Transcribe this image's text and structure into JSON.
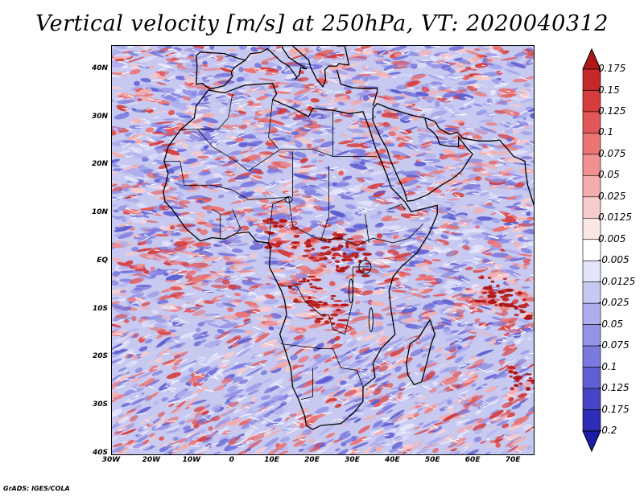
{
  "title": "Vertical velocity [m/s] at 250hPa, VT: 2020040312",
  "credit": "GrADS: IGES/COLA",
  "map": {
    "lat_min": -40,
    "lat_max": 45,
    "lon_min": -30,
    "lon_max": 75,
    "lat_ticks": [
      "40N",
      "30N",
      "20N",
      "10N",
      "EQ",
      "10S",
      "20S",
      "30S",
      "40S"
    ],
    "lon_ticks": [
      "30W",
      "20W",
      "10W",
      "0",
      "10E",
      "20E",
      "30E",
      "40E",
      "50E",
      "60E",
      "70E"
    ]
  },
  "colorbar": {
    "labels": [
      "0.175",
      "0.15",
      "0.125",
      "0.1",
      "0.075",
      "0.05",
      "0.025",
      "0.0125",
      "0.005",
      "-0.005",
      "-0.0125",
      "-0.025",
      "-0.05",
      "-0.075",
      "-0.1",
      "-0.125",
      "-0.175",
      "-0.2"
    ],
    "colors": [
      "#b01818",
      "#c42828",
      "#d63c3c",
      "#e25858",
      "#eb7474",
      "#f09090",
      "#f4adad",
      "#f8cccc",
      "#fbe6e6",
      "#ffffff",
      "#e4e4fb",
      "#c8c8f4",
      "#aeaeee",
      "#9494e6",
      "#7a7ade",
      "#5f5fd2",
      "#4646c4",
      "#2c2cb4",
      "#1c1ca6"
    ]
  },
  "chart_data": {
    "type": "heatmap",
    "title": "Vertical velocity [m/s] at 250hPa, VT: 2020040312",
    "variable": "Vertical velocity",
    "units": "m/s",
    "level": "250hPa",
    "valid_time": "2020040312",
    "x_range_deg": [
      -30,
      75
    ],
    "y_range_deg": [
      -40,
      45
    ],
    "contour_levels": [
      -0.2,
      -0.175,
      -0.125,
      -0.1,
      -0.075,
      -0.05,
      -0.025,
      -0.0125,
      -0.005,
      0.005,
      0.0125,
      0.025,
      0.05,
      0.075,
      0.1,
      0.125,
      0.15,
      0.175
    ]
  }
}
